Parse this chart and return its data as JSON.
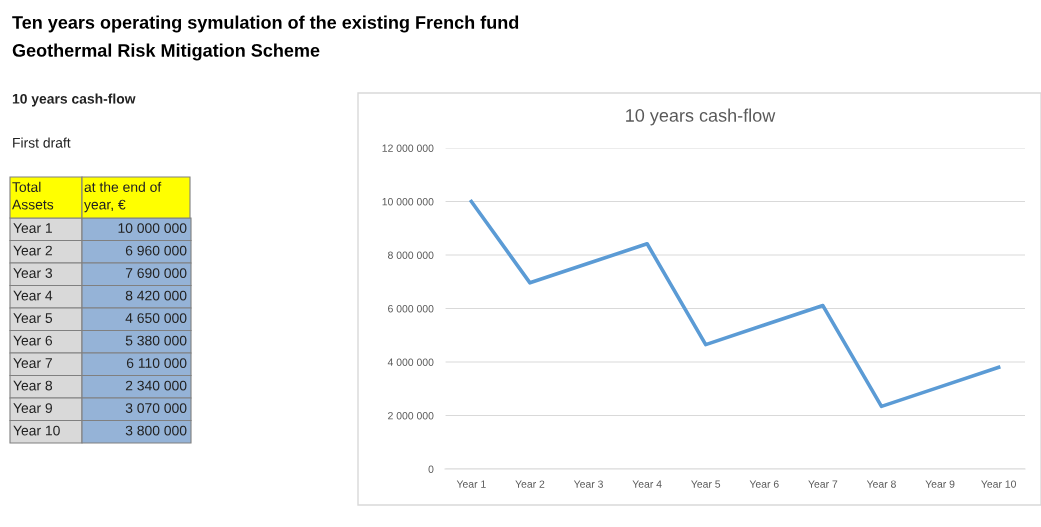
{
  "chart_data": [
    {
      "type": "other",
      "title": "Ten years operating symulation of the existing French fund",
      "subtitle": "Geothermal Risk Mitigation Scheme",
      "annotations": [
        "10 years cash-flow",
        "First draft",
        "Total\nAssets",
        "at the end of\nyear, €",
        "Year 1",
        "10 000 000",
        "Year 2",
        "6 960 000",
        "Year 3",
        "7 690 000",
        "Year 4",
        "8 420 000",
        "Year 5",
        "4 650 000",
        "Year 6",
        "5 380 000",
        "Year 7",
        "6 110 000",
        "Year 8",
        "2 340 000",
        "Year 9",
        "3 070 000",
        "Year 10",
        "3 800 000"
      ]
    },
    {
      "type": "line",
      "title": "10 years cash-flow",
      "categories": [
        "Year 1",
        "Year 2",
        "Year 3",
        "Year 4",
        "Year 5",
        "Year 6",
        "Year 7",
        "Year 8",
        "Year 9",
        "Year 10"
      ],
      "series": [
        {
          "color": "#5b9bd5",
          "values": [
            10000000,
            6960000,
            7690000,
            8420000,
            4650000,
            5380000,
            6110000,
            2340000,
            3070000,
            3800000
          ]
        }
      ],
      "ylim": [
        0,
        12000000
      ],
      "yticks": [
        {
          "value": 0,
          "label": "0"
        },
        {
          "value": 2000000,
          "label": "2 000 000"
        },
        {
          "value": 4000000,
          "label": "4 000 000"
        },
        {
          "value": 6000000,
          "label": "6 000 000"
        },
        {
          "value": 8000000,
          "label": "8 000 000"
        },
        {
          "value": 10000000,
          "label": "10 000 000"
        },
        {
          "value": 12000000,
          "label": "12 000 000"
        }
      ],
      "grid": "y",
      "marker": "none",
      "line_style": "solid"
    }
  ]
}
